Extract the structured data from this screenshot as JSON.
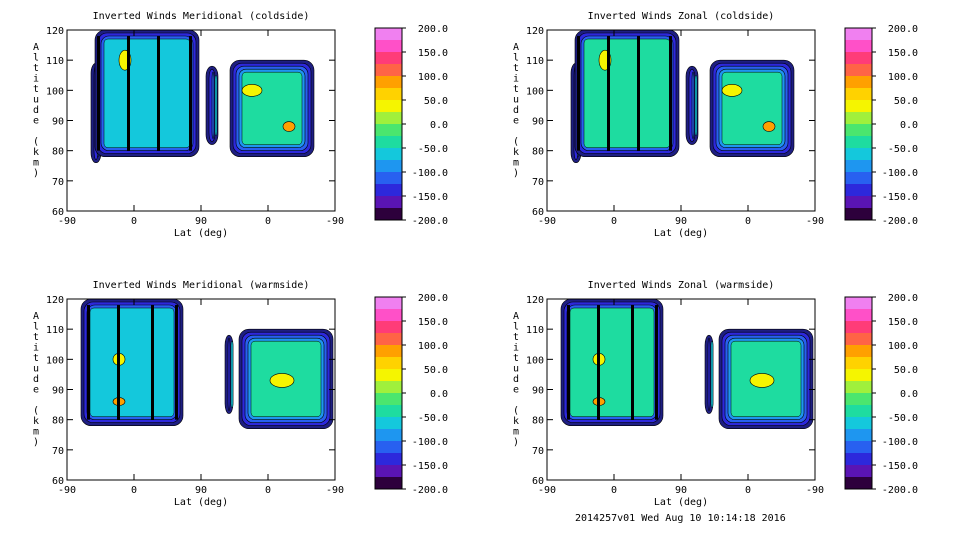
{
  "footer": "2014257v01 Wed Aug 10 10:14:18 2016",
  "colorbar": {
    "labels": [
      "200.0",
      "150.0",
      "100.0",
      "50.0",
      "0.0",
      "-50.0",
      "-100.0",
      "-150.0",
      "-200.0"
    ],
    "colors": [
      "#f080f0",
      "#ff50c8",
      "#ff3c78",
      "#ff6446",
      "#ffa000",
      "#ffd200",
      "#f5f500",
      "#a0f03c",
      "#4be66e",
      "#1edca0",
      "#14c8dc",
      "#1e96f0",
      "#2860f0",
      "#2d28dc",
      "#5a14b4",
      "#2d003c"
    ]
  },
  "contour_colors": {
    "edge": [
      "#1e1e82",
      "#2d28dc",
      "#2860f0",
      "#1e96f0",
      "#14c8dc",
      "#1edca0"
    ],
    "fill": "#1edca0",
    "neg": "#14c8dc",
    "pos": "#f5f500",
    "hot": "#ffa000",
    "line": "#000000"
  },
  "chart_data": [
    {
      "type": "heatmap",
      "title": "Inverted Winds Meridional (coldside)",
      "xlabel": "Lat (deg)",
      "ylabel": "Altitude (km)",
      "x_ticks": [
        "-90",
        "0",
        "90",
        "0",
        "-90"
      ],
      "y_ticks": [
        120,
        110,
        100,
        90,
        80,
        70,
        60
      ],
      "ylim": [
        60,
        120
      ],
      "zlim": [
        -200,
        200
      ],
      "regions": [
        {
          "lat_path": [
            -90,
            -60
          ],
          "alt_range": [
            76,
            109
          ],
          "value": -100
        },
        {
          "lat_path": [
            -60,
            0,
            60
          ],
          "alt_range": [
            78,
            120
          ],
          "value": -80
        },
        {
          "lat_path": [
            90,
            60
          ],
          "alt_range": [
            82,
            108
          ],
          "value": -100
        },
        {
          "lat_path": [
            30,
            0,
            -60
          ],
          "alt_range": [
            78,
            110
          ],
          "value": -40
        }
      ]
    },
    {
      "type": "heatmap",
      "title": "Inverted Winds Zonal (coldside)",
      "xlabel": "Lat (deg)",
      "ylabel": "Altitude (km)",
      "x_ticks": [
        "-90",
        "0",
        "90",
        "0",
        "-90"
      ],
      "y_ticks": [
        120,
        110,
        100,
        90,
        80,
        70,
        60
      ],
      "ylim": [
        60,
        120
      ],
      "zlim": [
        -200,
        200
      ],
      "regions": [
        {
          "lat_path": [
            -90,
            -60
          ],
          "alt_range": [
            76,
            109
          ],
          "value": -100
        },
        {
          "lat_path": [
            -60,
            0,
            60
          ],
          "alt_range": [
            78,
            120
          ],
          "value": -60
        },
        {
          "lat_path": [
            90,
            60
          ],
          "alt_range": [
            82,
            108
          ],
          "value": -100
        },
        {
          "lat_path": [
            30,
            0,
            -60
          ],
          "alt_range": [
            78,
            110
          ],
          "value": -30
        }
      ]
    },
    {
      "type": "heatmap",
      "title": "Inverted Winds Meridional (warmside)",
      "xlabel": "Lat (deg)",
      "ylabel": "Altitude (km)",
      "x_ticks": [
        "-90",
        "0",
        "90",
        "0",
        "-90"
      ],
      "y_ticks": [
        120,
        110,
        100,
        90,
        80,
        70,
        60
      ],
      "ylim": [
        60,
        120
      ],
      "zlim": [
        -200,
        200
      ],
      "regions": [
        {
          "lat_path": [
            -90,
            0,
            40
          ],
          "alt_range": [
            78,
            120
          ],
          "value": -80
        },
        {
          "lat_path": [
            60,
            50
          ],
          "alt_range": [
            82,
            108
          ],
          "value": -100
        },
        {
          "lat_path": [
            30,
            0,
            -60
          ],
          "alt_range": [
            77,
            110
          ],
          "value": -30
        }
      ]
    },
    {
      "type": "heatmap",
      "title": "Inverted Winds Zonal (warmside)",
      "xlabel": "Lat (deg)",
      "ylabel": "Altitude (km)",
      "x_ticks": [
        "-90",
        "0",
        "90",
        "0",
        "-90"
      ],
      "y_ticks": [
        120,
        110,
        100,
        90,
        80,
        70,
        60
      ],
      "ylim": [
        60,
        120
      ],
      "zlim": [
        -200,
        200
      ],
      "regions": [
        {
          "lat_path": [
            -90,
            0,
            60
          ],
          "alt_range": [
            78,
            120
          ],
          "value": -50
        },
        {
          "lat_path": [
            60,
            50
          ],
          "alt_range": [
            82,
            108
          ],
          "value": -100
        },
        {
          "lat_path": [
            30,
            0,
            -60
          ],
          "alt_range": [
            77,
            110
          ],
          "value": -20
        }
      ]
    }
  ]
}
